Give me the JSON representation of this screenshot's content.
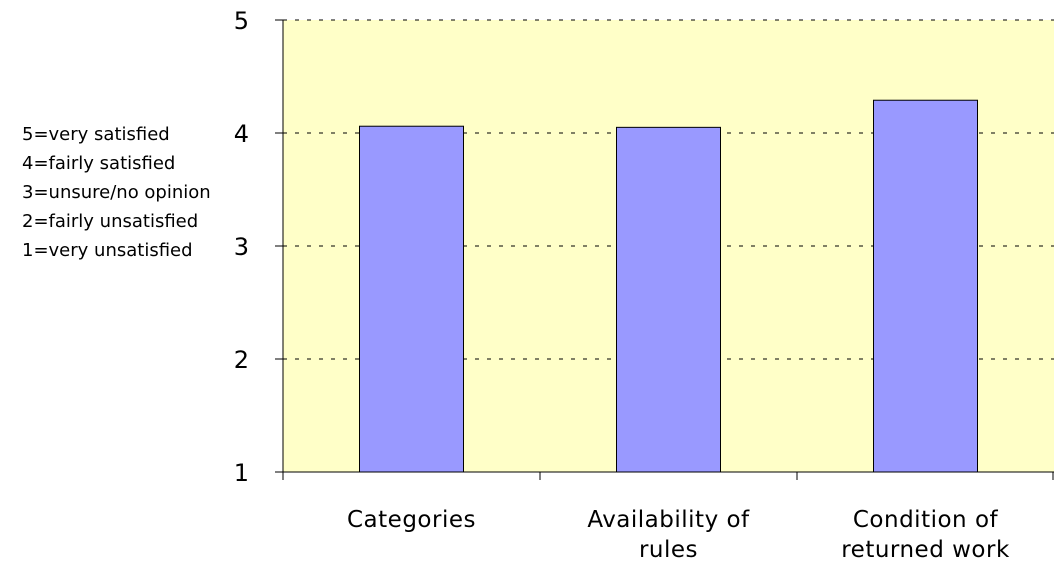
{
  "chart_data": {
    "type": "bar",
    "title": "",
    "xlabel": "",
    "ylabel": "",
    "categories": [
      [
        "Categories"
      ],
      [
        "Availability of",
        "rules"
      ],
      [
        "Condition of",
        "returned work"
      ]
    ],
    "values": [
      4.06,
      4.05,
      4.29
    ],
    "ylim": [
      1,
      5
    ],
    "yticks": [
      "1",
      "2",
      "3",
      "4",
      "5"
    ],
    "grid": true,
    "legend": "none",
    "colors": {
      "plot_background": "#ffffc8",
      "bar_fill": "#9999ff",
      "bar_stroke": "#000000",
      "gridline": "#000000"
    }
  },
  "scale_note": "5=very satisfied\n4=fairly satisfied\n3=unsure/no opinion\n2=fairly unsatisfied\n1=very unsatisfied"
}
